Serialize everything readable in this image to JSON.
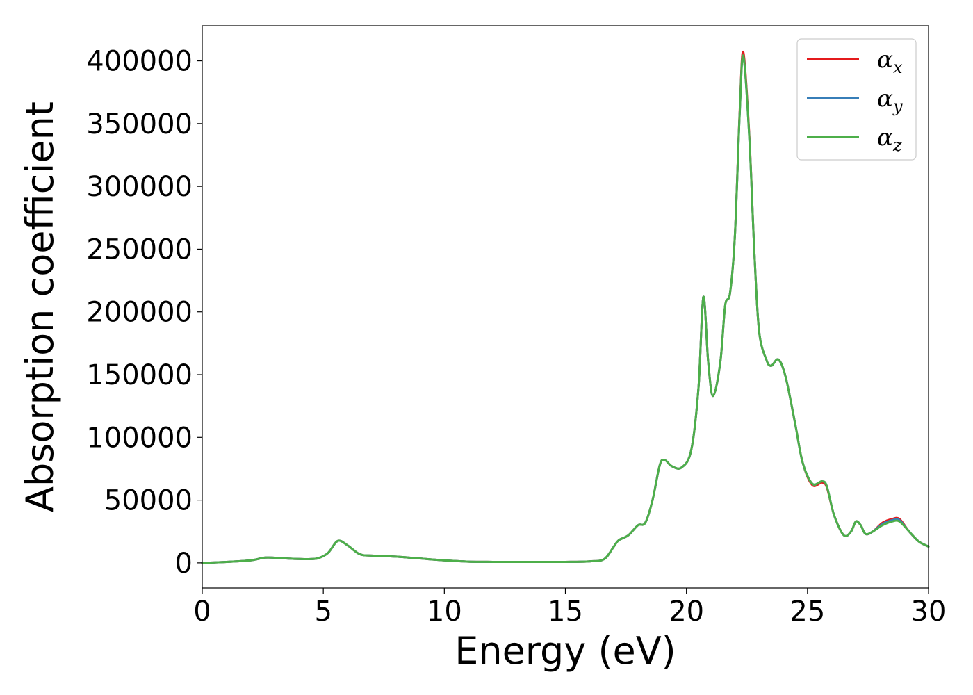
{
  "chart_data": {
    "type": "line",
    "title": "",
    "xlabel": "Energy (eV)",
    "ylabel": "Absorption coefficient",
    "xlim": [
      0,
      30
    ],
    "ylim": [
      -20000,
      428000
    ],
    "xticks": [
      0,
      5,
      10,
      15,
      20,
      25,
      30
    ],
    "yticks": [
      0,
      50000,
      100000,
      150000,
      200000,
      250000,
      300000,
      350000,
      400000
    ],
    "grid": false,
    "legend_position": "top-right",
    "series": [
      {
        "name": "α_x",
        "legend_symbol": "α",
        "legend_subscript": "x",
        "color": "#e41a1c",
        "points": [
          [
            0,
            0
          ],
          [
            1,
            800
          ],
          [
            2,
            2000
          ],
          [
            2.6,
            4200
          ],
          [
            3.2,
            3800
          ],
          [
            3.8,
            3200
          ],
          [
            4.4,
            3000
          ],
          [
            4.8,
            3800
          ],
          [
            5.2,
            8000
          ],
          [
            5.6,
            17500
          ],
          [
            6.0,
            14000
          ],
          [
            6.5,
            7000
          ],
          [
            7.0,
            5800
          ],
          [
            8.0,
            5000
          ],
          [
            9.0,
            3500
          ],
          [
            10.0,
            2000
          ],
          [
            11.0,
            1000
          ],
          [
            12.0,
            800
          ],
          [
            13.0,
            800
          ],
          [
            14.0,
            800
          ],
          [
            15.0,
            800
          ],
          [
            16.0,
            1200
          ],
          [
            16.6,
            3000
          ],
          [
            17.0,
            13000
          ],
          [
            17.2,
            18000
          ],
          [
            17.6,
            22000
          ],
          [
            18.0,
            30000
          ],
          [
            18.3,
            32000
          ],
          [
            18.6,
            50000
          ],
          [
            18.9,
            78000
          ],
          [
            19.1,
            82000
          ],
          [
            19.4,
            77000
          ],
          [
            19.8,
            76000
          ],
          [
            20.2,
            90000
          ],
          [
            20.5,
            140000
          ],
          [
            20.7,
            212000
          ],
          [
            20.9,
            160000
          ],
          [
            21.1,
            133000
          ],
          [
            21.4,
            160000
          ],
          [
            21.6,
            205000
          ],
          [
            21.8,
            215000
          ],
          [
            22.0,
            260000
          ],
          [
            22.2,
            360000
          ],
          [
            22.35,
            407000
          ],
          [
            22.6,
            340000
          ],
          [
            22.8,
            250000
          ],
          [
            23.0,
            185000
          ],
          [
            23.3,
            162000
          ],
          [
            23.5,
            157000
          ],
          [
            23.8,
            162000
          ],
          [
            24.1,
            148000
          ],
          [
            24.5,
            110000
          ],
          [
            24.8,
            80000
          ],
          [
            25.2,
            62000
          ],
          [
            25.6,
            64000
          ],
          [
            25.8,
            60000
          ],
          [
            26.1,
            38000
          ],
          [
            26.5,
            22000
          ],
          [
            26.8,
            25000
          ],
          [
            27.0,
            33000
          ],
          [
            27.2,
            30000
          ],
          [
            27.4,
            23000
          ],
          [
            27.7,
            25000
          ],
          [
            28.1,
            32000
          ],
          [
            28.5,
            35000
          ],
          [
            28.8,
            35000
          ],
          [
            29.2,
            25000
          ],
          [
            29.6,
            17000
          ],
          [
            30.0,
            13000
          ]
        ]
      },
      {
        "name": "α_y",
        "legend_symbol": "α",
        "legend_subscript": "y",
        "color": "#377eb8",
        "points": [
          [
            0,
            0
          ],
          [
            1,
            800
          ],
          [
            2,
            2000
          ],
          [
            2.6,
            4200
          ],
          [
            3.2,
            3800
          ],
          [
            3.8,
            3200
          ],
          [
            4.4,
            3000
          ],
          [
            4.8,
            3800
          ],
          [
            5.2,
            8000
          ],
          [
            5.6,
            17500
          ],
          [
            6.0,
            14000
          ],
          [
            6.5,
            7000
          ],
          [
            7.0,
            5800
          ],
          [
            8.0,
            5000
          ],
          [
            9.0,
            3500
          ],
          [
            10.0,
            2000
          ],
          [
            11.0,
            1000
          ],
          [
            12.0,
            800
          ],
          [
            13.0,
            800
          ],
          [
            14.0,
            800
          ],
          [
            15.0,
            800
          ],
          [
            16.0,
            1200
          ],
          [
            16.6,
            3000
          ],
          [
            17.0,
            13000
          ],
          [
            17.2,
            18000
          ],
          [
            17.6,
            22000
          ],
          [
            18.0,
            30000
          ],
          [
            18.3,
            32000
          ],
          [
            18.6,
            50000
          ],
          [
            18.9,
            78000
          ],
          [
            19.1,
            82000
          ],
          [
            19.4,
            77000
          ],
          [
            19.8,
            76000
          ],
          [
            20.2,
            90000
          ],
          [
            20.5,
            140000
          ],
          [
            20.7,
            212000
          ],
          [
            20.9,
            160000
          ],
          [
            21.1,
            133000
          ],
          [
            21.4,
            160000
          ],
          [
            21.6,
            205000
          ],
          [
            21.8,
            215000
          ],
          [
            22.0,
            260000
          ],
          [
            22.2,
            358000
          ],
          [
            22.35,
            404000
          ],
          [
            22.6,
            338000
          ],
          [
            22.8,
            250000
          ],
          [
            23.0,
            185000
          ],
          [
            23.3,
            162000
          ],
          [
            23.5,
            157000
          ],
          [
            23.8,
            162000
          ],
          [
            24.1,
            148000
          ],
          [
            24.5,
            110000
          ],
          [
            24.8,
            80000
          ],
          [
            25.2,
            63000
          ],
          [
            25.6,
            65000
          ],
          [
            25.8,
            61000
          ],
          [
            26.1,
            38000
          ],
          [
            26.5,
            22000
          ],
          [
            26.8,
            25000
          ],
          [
            27.0,
            33000
          ],
          [
            27.2,
            30000
          ],
          [
            27.4,
            23000
          ],
          [
            27.7,
            25000
          ],
          [
            28.1,
            31000
          ],
          [
            28.5,
            34000
          ],
          [
            28.8,
            34000
          ],
          [
            29.2,
            25000
          ],
          [
            29.6,
            17000
          ],
          [
            30.0,
            13000
          ]
        ]
      },
      {
        "name": "α_z",
        "legend_symbol": "α",
        "legend_subscript": "z",
        "color": "#4daf4a",
        "points": [
          [
            0,
            0
          ],
          [
            1,
            800
          ],
          [
            2,
            2000
          ],
          [
            2.6,
            4200
          ],
          [
            3.2,
            3800
          ],
          [
            3.8,
            3200
          ],
          [
            4.4,
            3000
          ],
          [
            4.8,
            3800
          ],
          [
            5.2,
            8000
          ],
          [
            5.6,
            17500
          ],
          [
            6.0,
            14000
          ],
          [
            6.5,
            7000
          ],
          [
            7.0,
            5800
          ],
          [
            8.0,
            5000
          ],
          [
            9.0,
            3500
          ],
          [
            10.0,
            2000
          ],
          [
            11.0,
            1000
          ],
          [
            12.0,
            800
          ],
          [
            13.0,
            800
          ],
          [
            14.0,
            800
          ],
          [
            15.0,
            800
          ],
          [
            16.0,
            1200
          ],
          [
            16.6,
            3000
          ],
          [
            17.0,
            13000
          ],
          [
            17.2,
            18000
          ],
          [
            17.6,
            22000
          ],
          [
            18.0,
            30000
          ],
          [
            18.3,
            32000
          ],
          [
            18.6,
            50000
          ],
          [
            18.9,
            78000
          ],
          [
            19.1,
            82000
          ],
          [
            19.4,
            77000
          ],
          [
            19.8,
            76000
          ],
          [
            20.2,
            90000
          ],
          [
            20.5,
            140000
          ],
          [
            20.7,
            212000
          ],
          [
            20.9,
            160000
          ],
          [
            21.1,
            133000
          ],
          [
            21.4,
            160000
          ],
          [
            21.6,
            205000
          ],
          [
            21.8,
            215000
          ],
          [
            22.0,
            260000
          ],
          [
            22.2,
            358000
          ],
          [
            22.35,
            404000
          ],
          [
            22.6,
            338000
          ],
          [
            22.8,
            250000
          ],
          [
            23.0,
            185000
          ],
          [
            23.3,
            162000
          ],
          [
            23.5,
            157000
          ],
          [
            23.8,
            162000
          ],
          [
            24.1,
            148000
          ],
          [
            24.5,
            110000
          ],
          [
            24.8,
            80000
          ],
          [
            25.2,
            63000
          ],
          [
            25.6,
            65000
          ],
          [
            25.8,
            61000
          ],
          [
            26.1,
            38000
          ],
          [
            26.5,
            22000
          ],
          [
            26.8,
            25000
          ],
          [
            27.0,
            33000
          ],
          [
            27.2,
            30000
          ],
          [
            27.4,
            23000
          ],
          [
            27.7,
            25000
          ],
          [
            28.1,
            30000
          ],
          [
            28.5,
            33000
          ],
          [
            28.8,
            33000
          ],
          [
            29.2,
            25000
          ],
          [
            29.6,
            17000
          ],
          [
            30.0,
            13000
          ]
        ]
      }
    ]
  }
}
